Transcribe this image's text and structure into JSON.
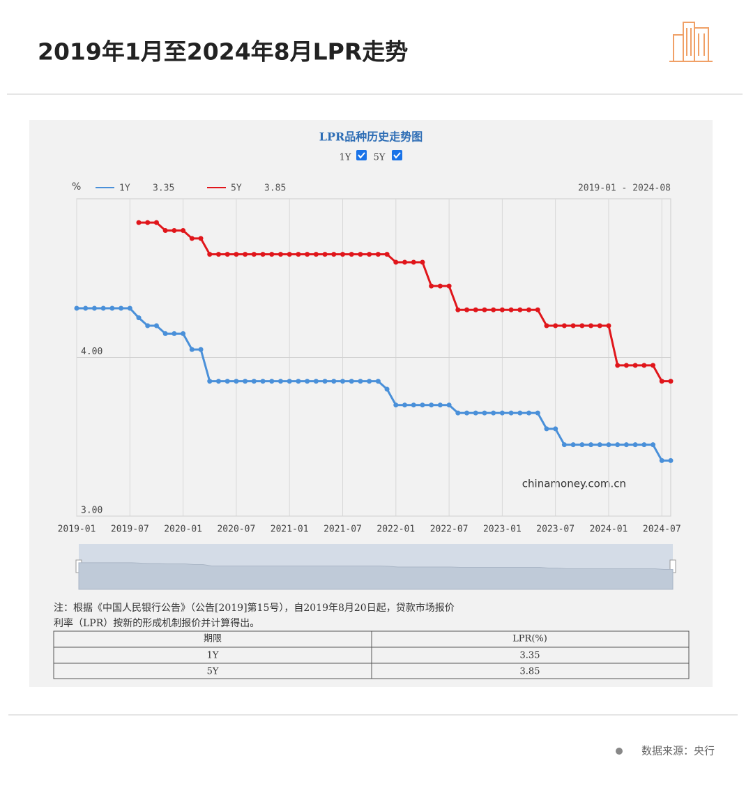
{
  "header": {
    "title": "2019年1月至2024年8月LPR走势"
  },
  "chart_data": {
    "type": "line",
    "title": "LPR品种历史走势图",
    "toggles": [
      "1Y",
      "5Y"
    ],
    "y_label": "%",
    "date_range": "2019-01 - 2024-08",
    "watermark": "chinamoney.com.cn",
    "x": [
      "2019-01",
      "2019-02",
      "2019-03",
      "2019-04",
      "2019-05",
      "2019-06",
      "2019-07",
      "2019-08",
      "2019-09",
      "2019-10",
      "2019-11",
      "2019-12",
      "2020-01",
      "2020-02",
      "2020-03",
      "2020-04",
      "2020-05",
      "2020-06",
      "2020-07",
      "2020-08",
      "2020-09",
      "2020-10",
      "2020-11",
      "2020-12",
      "2021-01",
      "2021-02",
      "2021-03",
      "2021-04",
      "2021-05",
      "2021-06",
      "2021-07",
      "2021-08",
      "2021-09",
      "2021-10",
      "2021-11",
      "2021-12",
      "2022-01",
      "2022-02",
      "2022-03",
      "2022-04",
      "2022-05",
      "2022-06",
      "2022-07",
      "2022-08",
      "2022-09",
      "2022-10",
      "2022-11",
      "2022-12",
      "2023-01",
      "2023-02",
      "2023-03",
      "2023-04",
      "2023-05",
      "2023-06",
      "2023-07",
      "2023-08",
      "2023-09",
      "2023-10",
      "2023-11",
      "2023-12",
      "2024-01",
      "2024-02",
      "2024-03",
      "2024-04",
      "2024-05",
      "2024-06",
      "2024-07",
      "2024-08"
    ],
    "xticks": [
      "2019-01",
      "2019-07",
      "2020-01",
      "2020-07",
      "2021-01",
      "2021-07",
      "2022-01",
      "2022-07",
      "2023-01",
      "2023-07",
      "2024-01",
      "2024-07"
    ],
    "ylim": [
      3,
      5
    ],
    "yticks": [
      {
        "value": 3,
        "label": "3.00"
      },
      {
        "value": 4,
        "label": "4.00"
      }
    ],
    "grid": true,
    "series": [
      {
        "name": "1Y",
        "color": "#4a90d9",
        "latest": 3.35,
        "values": [
          4.31,
          4.31,
          4.31,
          4.31,
          4.31,
          4.31,
          4.31,
          4.25,
          4.2,
          4.2,
          4.15,
          4.15,
          4.15,
          4.05,
          4.05,
          3.85,
          3.85,
          3.85,
          3.85,
          3.85,
          3.85,
          3.85,
          3.85,
          3.85,
          3.85,
          3.85,
          3.85,
          3.85,
          3.85,
          3.85,
          3.85,
          3.85,
          3.85,
          3.85,
          3.85,
          3.8,
          3.7,
          3.7,
          3.7,
          3.7,
          3.7,
          3.7,
          3.7,
          3.65,
          3.65,
          3.65,
          3.65,
          3.65,
          3.65,
          3.65,
          3.65,
          3.65,
          3.65,
          3.55,
          3.55,
          3.45,
          3.45,
          3.45,
          3.45,
          3.45,
          3.45,
          3.45,
          3.45,
          3.45,
          3.45,
          3.45,
          3.35,
          3.35
        ]
      },
      {
        "name": "5Y",
        "color": "#e0161b",
        "latest": 3.85,
        "values": [
          null,
          null,
          null,
          null,
          null,
          null,
          null,
          4.85,
          4.85,
          4.85,
          4.8,
          4.8,
          4.8,
          4.75,
          4.75,
          4.65,
          4.65,
          4.65,
          4.65,
          4.65,
          4.65,
          4.65,
          4.65,
          4.65,
          4.65,
          4.65,
          4.65,
          4.65,
          4.65,
          4.65,
          4.65,
          4.65,
          4.65,
          4.65,
          4.65,
          4.65,
          4.6,
          4.6,
          4.6,
          4.6,
          4.45,
          4.45,
          4.45,
          4.3,
          4.3,
          4.3,
          4.3,
          4.3,
          4.3,
          4.3,
          4.3,
          4.3,
          4.3,
          4.2,
          4.2,
          4.2,
          4.2,
          4.2,
          4.2,
          4.2,
          4.2,
          3.95,
          3.95,
          3.95,
          3.95,
          3.95,
          3.85,
          3.85
        ]
      }
    ]
  },
  "note": "注：根据《中国人民银行公告》（公告[2019]第15号），自2019年8月20日起，贷款市场报价利率（LPR）按新的形成机制报价并计算得出。",
  "table": {
    "header": [
      "期限",
      "LPR(%)"
    ],
    "rows": [
      [
        "1Y",
        "3.35"
      ],
      [
        "5Y",
        "3.85"
      ]
    ]
  },
  "footer": {
    "source": "数据来源：央行"
  }
}
